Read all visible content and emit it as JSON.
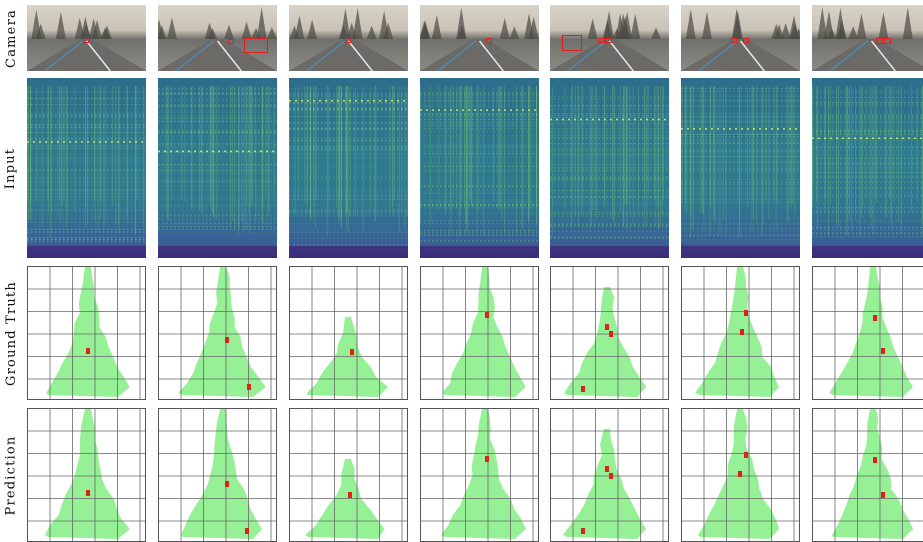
{
  "rows": {
    "camera": "Camera",
    "input": "Input",
    "ground_truth": "Ground Truth",
    "prediction": "Prediction"
  },
  "columns": 7,
  "colors": {
    "occupancy_fill": "#90f090",
    "detection_marker": "#e0201a",
    "grid_line": "#555555",
    "spectrogram_base": "#2f7a8e",
    "spectrogram_highlight": "#c8f060"
  }
}
